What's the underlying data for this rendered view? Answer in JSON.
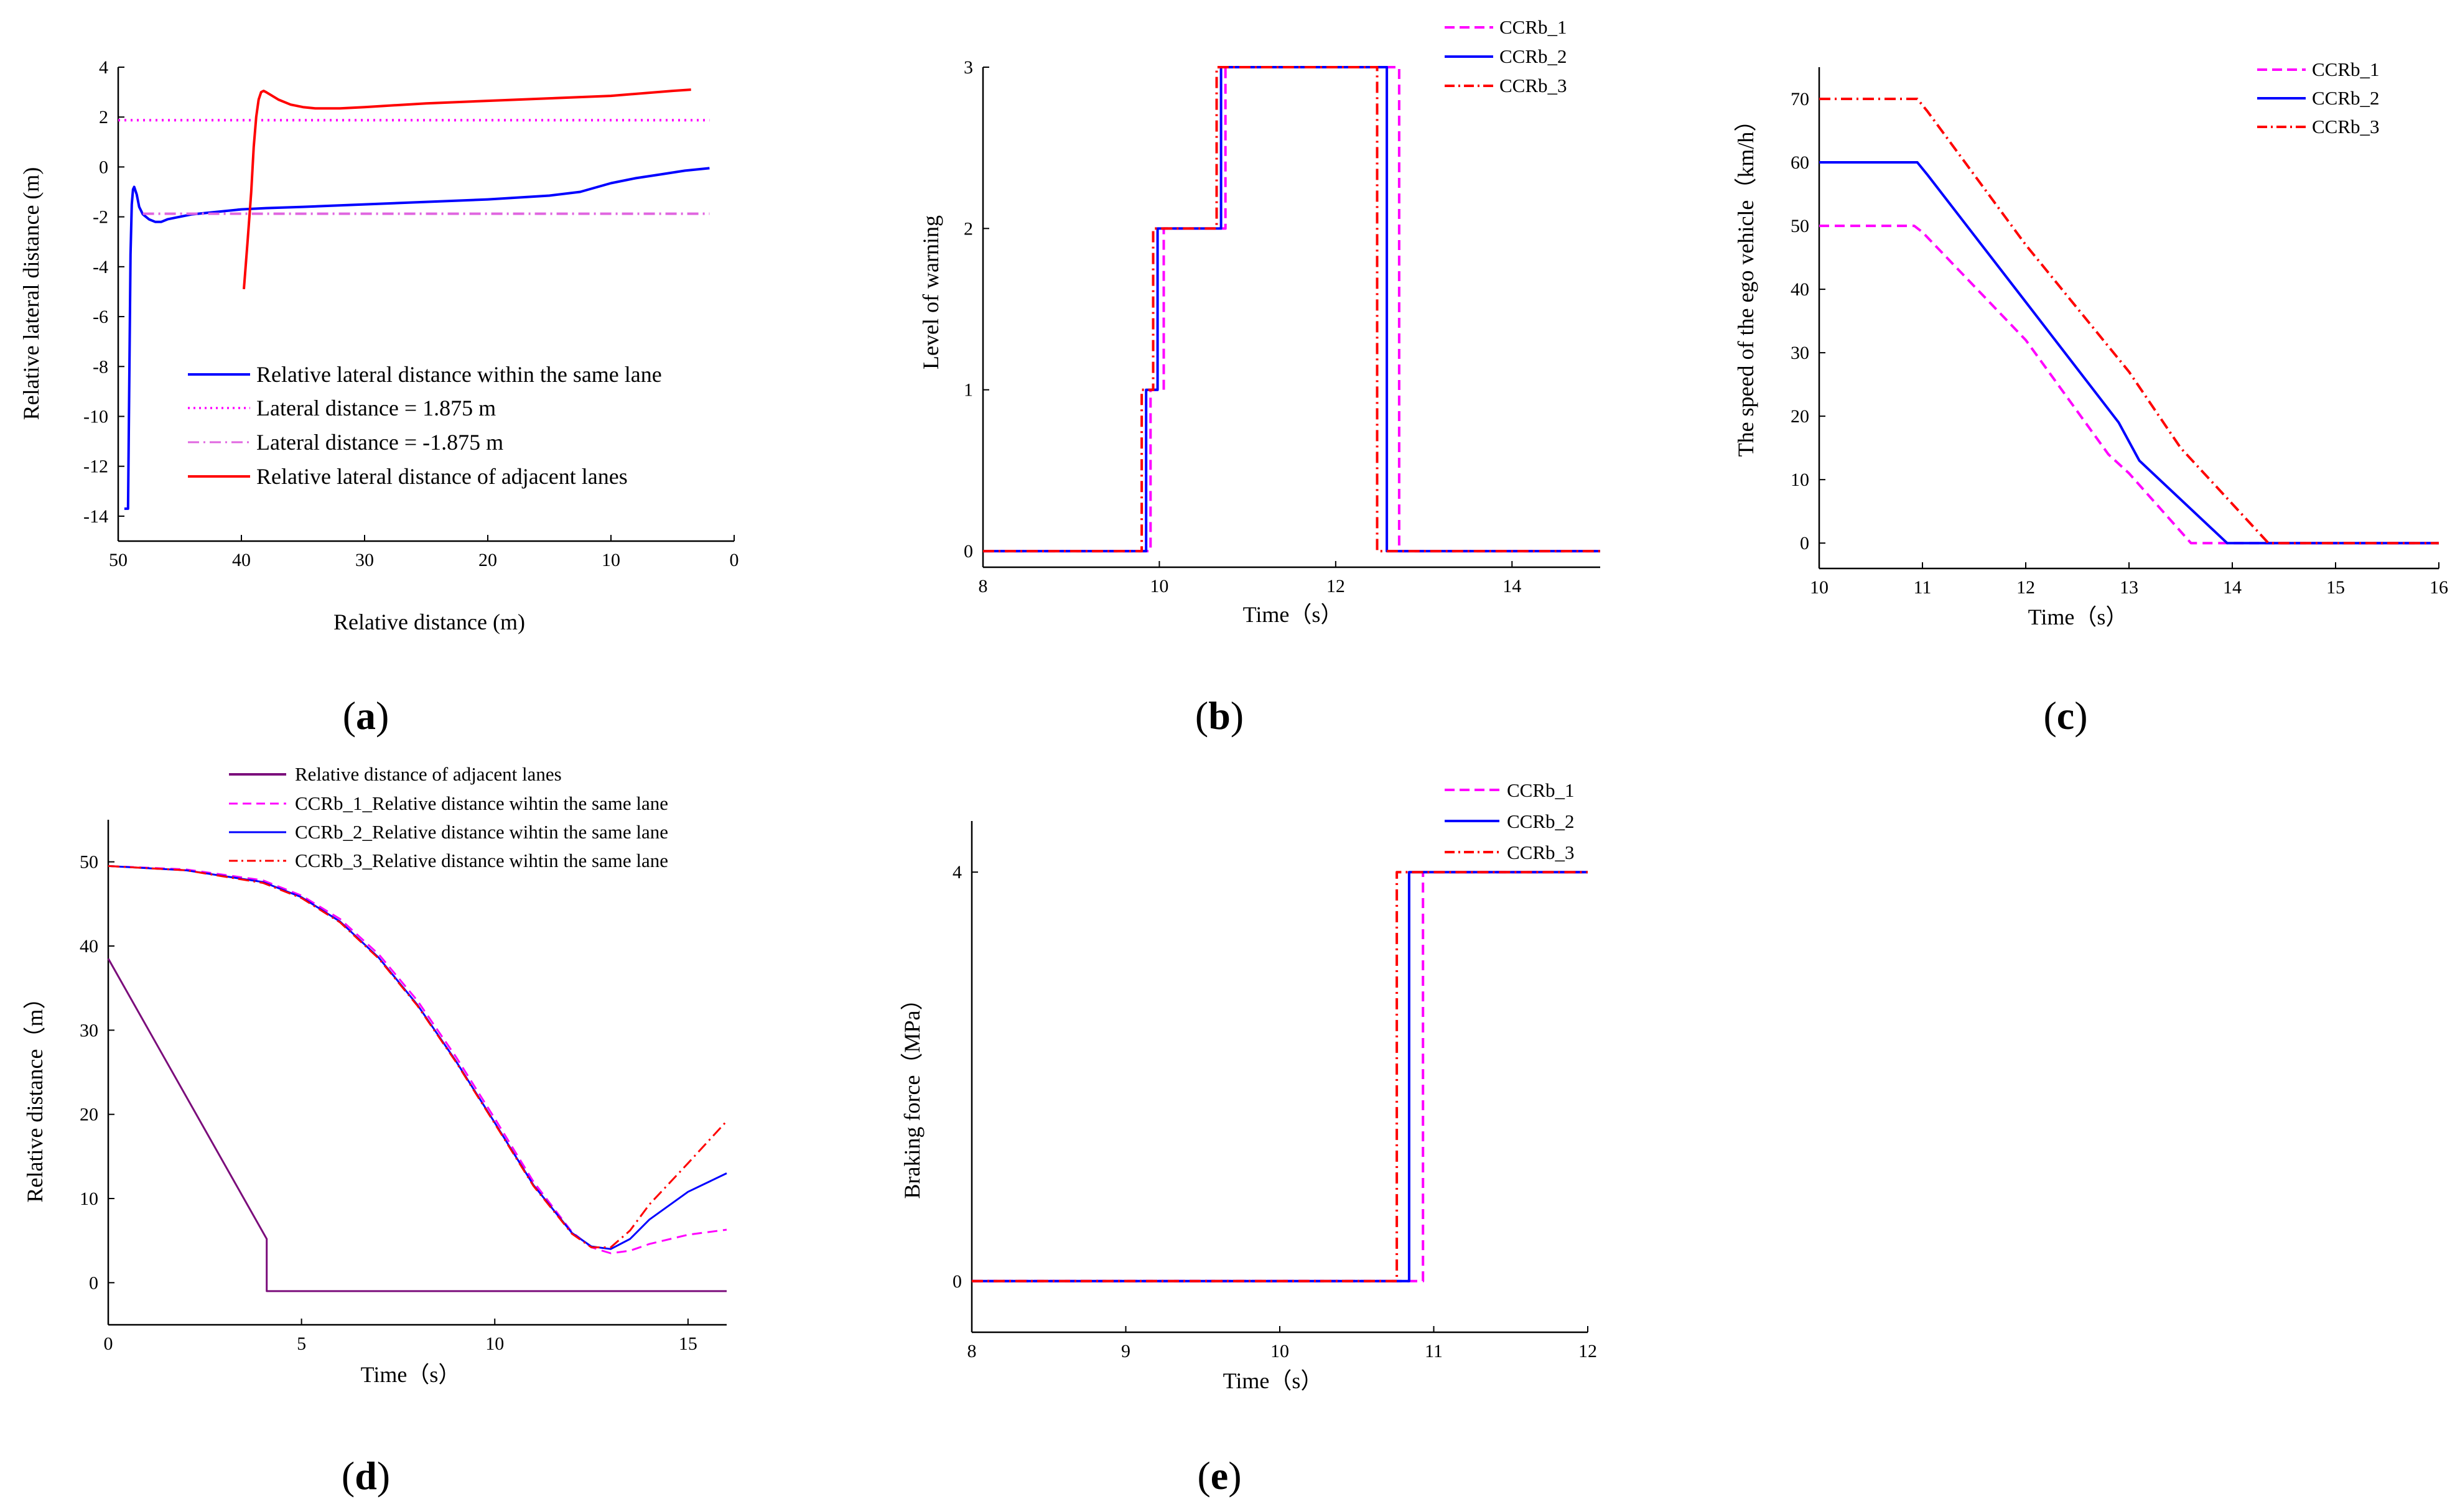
{
  "colors": {
    "magenta": "#ff00ff",
    "blue": "#0000ff",
    "red": "#ff0000",
    "purple": "#7b0d7b",
    "violet": "#e066e0",
    "axis": "#000000"
  },
  "chart_data": [
    {
      "id": "a",
      "panel_label": "a",
      "type": "line",
      "xlabel": "Relative  distance (m)",
      "ylabel": "Relative lateral distance (m)",
      "xlim": [
        50,
        0
      ],
      "ylim": [
        -15,
        4
      ],
      "xticks": [
        50,
        40,
        30,
        20,
        10,
        0
      ],
      "yticks": [
        4,
        2,
        0,
        -2,
        -4,
        -6,
        -8,
        -10,
        -12,
        -14
      ],
      "legend_position": "center",
      "series": [
        {
          "name": "Relative lateral distance within the same lane",
          "color": "#0000ff",
          "dash": "solid",
          "x": [
            49.5,
            49.2,
            49.0,
            48.9,
            48.8,
            48.7,
            48.5,
            48.3,
            48.0,
            47.5,
            47.0,
            46.5,
            46.0,
            45.0,
            44.0,
            42.0,
            40.0,
            38.0,
            35.0,
            30.0,
            25.0,
            20.0,
            15.0,
            12.5,
            10.0,
            8.0,
            6.0,
            4.0,
            2.0
          ],
          "y": [
            -13.7,
            -13.7,
            -3.5,
            -1.5,
            -0.9,
            -0.8,
            -1.1,
            -1.6,
            -1.9,
            -2.1,
            -2.2,
            -2.2,
            -2.1,
            -2.0,
            -1.9,
            -1.8,
            -1.7,
            -1.65,
            -1.6,
            -1.5,
            -1.4,
            -1.3,
            -1.15,
            -1.0,
            -0.65,
            -0.45,
            -0.3,
            -0.15,
            -0.05
          ]
        },
        {
          "name": "Lateral distance = 1.875 m",
          "color": "#ff00ff",
          "dash": "dot",
          "x": [
            50,
            2
          ],
          "y": [
            1.875,
            1.875
          ]
        },
        {
          "name": "Lateral distance = -1.875 m",
          "color": "#e066e0",
          "dash": "dashdot",
          "x": [
            48,
            2
          ],
          "y": [
            -1.875,
            -1.875
          ]
        },
        {
          "name": "Relative lateral distance of adjacent lanes",
          "color": "#ff0000",
          "dash": "solid",
          "x": [
            39.8,
            39.5,
            39.2,
            39.0,
            38.8,
            38.6,
            38.4,
            38.2,
            38.0,
            37.5,
            37.0,
            36.0,
            35.0,
            34.0,
            32.0,
            30.0,
            25.0,
            20.0,
            15.0,
            10.0,
            5.0,
            3.5
          ],
          "y": [
            -4.9,
            -3.0,
            -1.0,
            0.8,
            2.0,
            2.7,
            3.0,
            3.05,
            3.0,
            2.85,
            2.7,
            2.5,
            2.4,
            2.35,
            2.35,
            2.4,
            2.55,
            2.65,
            2.75,
            2.85,
            3.05,
            3.1
          ]
        }
      ]
    },
    {
      "id": "b",
      "panel_label": "b",
      "type": "line",
      "xlabel": "Time（s）",
      "ylabel": "Level of warning",
      "xlim": [
        8,
        15
      ],
      "ylim": [
        -0.1,
        3
      ],
      "xticks": [
        8,
        10,
        12,
        14
      ],
      "yticks": [
        0,
        1,
        2,
        3
      ],
      "legend_position": "top-right",
      "series": [
        {
          "name": "CCRb_1",
          "color": "#ff00ff",
          "dash": "dash",
          "x": [
            8,
            9.9,
            9.9,
            10.05,
            10.05,
            10.75,
            10.75,
            12.72,
            12.72,
            15
          ],
          "y": [
            0,
            0,
            1,
            1,
            2,
            2,
            3,
            3,
            0,
            0
          ]
        },
        {
          "name": "CCRb_2",
          "color": "#0000ff",
          "dash": "solid",
          "x": [
            8,
            9.85,
            9.85,
            9.98,
            9.98,
            10.7,
            10.7,
            12.58,
            12.58,
            15
          ],
          "y": [
            0,
            0,
            1,
            1,
            2,
            2,
            3,
            3,
            0,
            0
          ]
        },
        {
          "name": "CCRb_3",
          "color": "#ff0000",
          "dash": "dashdot",
          "x": [
            8,
            9.8,
            9.8,
            9.93,
            9.93,
            10.65,
            10.65,
            12.47,
            12.47,
            15
          ],
          "y": [
            0,
            0,
            1,
            1,
            2,
            2,
            3,
            3,
            0,
            0
          ]
        }
      ]
    },
    {
      "id": "c",
      "panel_label": "c",
      "type": "line",
      "xlabel": "Time（s）",
      "ylabel": "The speed of the ego vehicle（km/h）",
      "xlim": [
        10,
        16
      ],
      "ylim": [
        -4,
        75
      ],
      "xticks": [
        10,
        11,
        12,
        13,
        14,
        15,
        16
      ],
      "yticks": [
        0,
        10,
        20,
        30,
        40,
        50,
        60,
        70
      ],
      "legend_position": "top-right",
      "series": [
        {
          "name": "CCRb_1",
          "color": "#ff00ff",
          "dash": "dash",
          "x": [
            10,
            10.8,
            10.92,
            11.0,
            12.0,
            12.8,
            13.0,
            13.6,
            16
          ],
          "y": [
            50,
            50,
            50,
            49,
            32,
            14,
            11,
            0,
            0
          ]
        },
        {
          "name": "CCRb_2",
          "color": "#0000ff",
          "dash": "solid",
          "x": [
            10,
            10.85,
            10.95,
            11.05,
            12.0,
            12.9,
            13.1,
            13.95,
            16
          ],
          "y": [
            60,
            60,
            60,
            58,
            38,
            19,
            13,
            0,
            0
          ]
        },
        {
          "name": "CCRb_3",
          "color": "#ff0000",
          "dash": "dashdot",
          "x": [
            10,
            10.85,
            10.95,
            11.05,
            12.0,
            13.0,
            13.5,
            14.35,
            16
          ],
          "y": [
            70,
            70,
            70,
            68,
            47,
            27,
            15,
            0,
            0
          ]
        }
      ]
    },
    {
      "id": "d",
      "panel_label": "d",
      "type": "line",
      "xlabel": "Time（s）",
      "ylabel": "Relative distance（m）",
      "xlim": [
        0,
        16
      ],
      "ylim": [
        -5,
        55
      ],
      "xticks": [
        0,
        5,
        10,
        15
      ],
      "yticks": [
        0,
        10,
        20,
        30,
        40,
        50
      ],
      "legend_position": "top",
      "series": [
        {
          "name": "Relative distance of adjacent lanes",
          "color": "#7b0d7b",
          "dash": "solid",
          "x": [
            0,
            4.1,
            4.1,
            16
          ],
          "y": [
            38.5,
            5.2,
            -1,
            -1
          ]
        },
        {
          "name": "CCRb_1_Relative distance wihtin the same lane",
          "color": "#ff00ff",
          "dash": "dash",
          "x": [
            0,
            2,
            4,
            5,
            6,
            7,
            8,
            9,
            10,
            11,
            12,
            12.5,
            13,
            13.5,
            14,
            15,
            16
          ],
          "y": [
            49.5,
            49.1,
            47.8,
            46.0,
            43.2,
            39.0,
            33.5,
            26.8,
            19.5,
            12.0,
            6.0,
            4.2,
            3.5,
            3.8,
            4.6,
            5.7,
            6.3
          ]
        },
        {
          "name": "CCRb_2_Relative distance wihtin the same lane",
          "color": "#0000ff",
          "dash": "solid",
          "x": [
            0,
            2,
            4,
            5,
            6,
            7,
            8,
            9,
            10,
            11,
            12,
            12.5,
            13,
            13.5,
            14,
            15,
            16
          ],
          "y": [
            49.5,
            49.0,
            47.6,
            45.8,
            42.9,
            38.6,
            33.0,
            26.3,
            19.0,
            11.6,
            5.9,
            4.3,
            4.0,
            5.2,
            7.5,
            10.8,
            13.0
          ]
        },
        {
          "name": "CCRb_3_Relative distance wihtin the same lane",
          "color": "#ff0000",
          "dash": "dashdot",
          "x": [
            0,
            2,
            4,
            5,
            6,
            7,
            8,
            9,
            10,
            11,
            12,
            12.5,
            13,
            13.5,
            14,
            15,
            16
          ],
          "y": [
            49.5,
            49.0,
            47.5,
            45.7,
            42.8,
            38.5,
            32.9,
            26.2,
            18.9,
            11.5,
            5.8,
            4.2,
            4.2,
            6.2,
            9.3,
            14.2,
            19.2
          ]
        }
      ]
    },
    {
      "id": "e",
      "panel_label": "e",
      "type": "line",
      "xlabel": "Time（s）",
      "ylabel": "Braking force（MPa）",
      "xlim": [
        8,
        12
      ],
      "ylim": [
        -0.5,
        4.5
      ],
      "xticks": [
        8,
        9,
        10,
        11,
        12
      ],
      "yticks": [
        0,
        4
      ],
      "legend_position": "top-right",
      "series": [
        {
          "name": "CCRb_1",
          "color": "#ff00ff",
          "dash": "dash",
          "x": [
            8,
            10.93,
            10.93,
            12
          ],
          "y": [
            0,
            0,
            4,
            4
          ]
        },
        {
          "name": "CCRb_2",
          "color": "#0000ff",
          "dash": "solid",
          "x": [
            8,
            10.84,
            10.84,
            12
          ],
          "y": [
            0,
            0,
            4,
            4
          ]
        },
        {
          "name": "CCRb_3",
          "color": "#ff0000",
          "dash": "dashdot",
          "x": [
            8,
            10.76,
            10.76,
            12
          ],
          "y": [
            0,
            0,
            4,
            4
          ]
        }
      ]
    }
  ]
}
